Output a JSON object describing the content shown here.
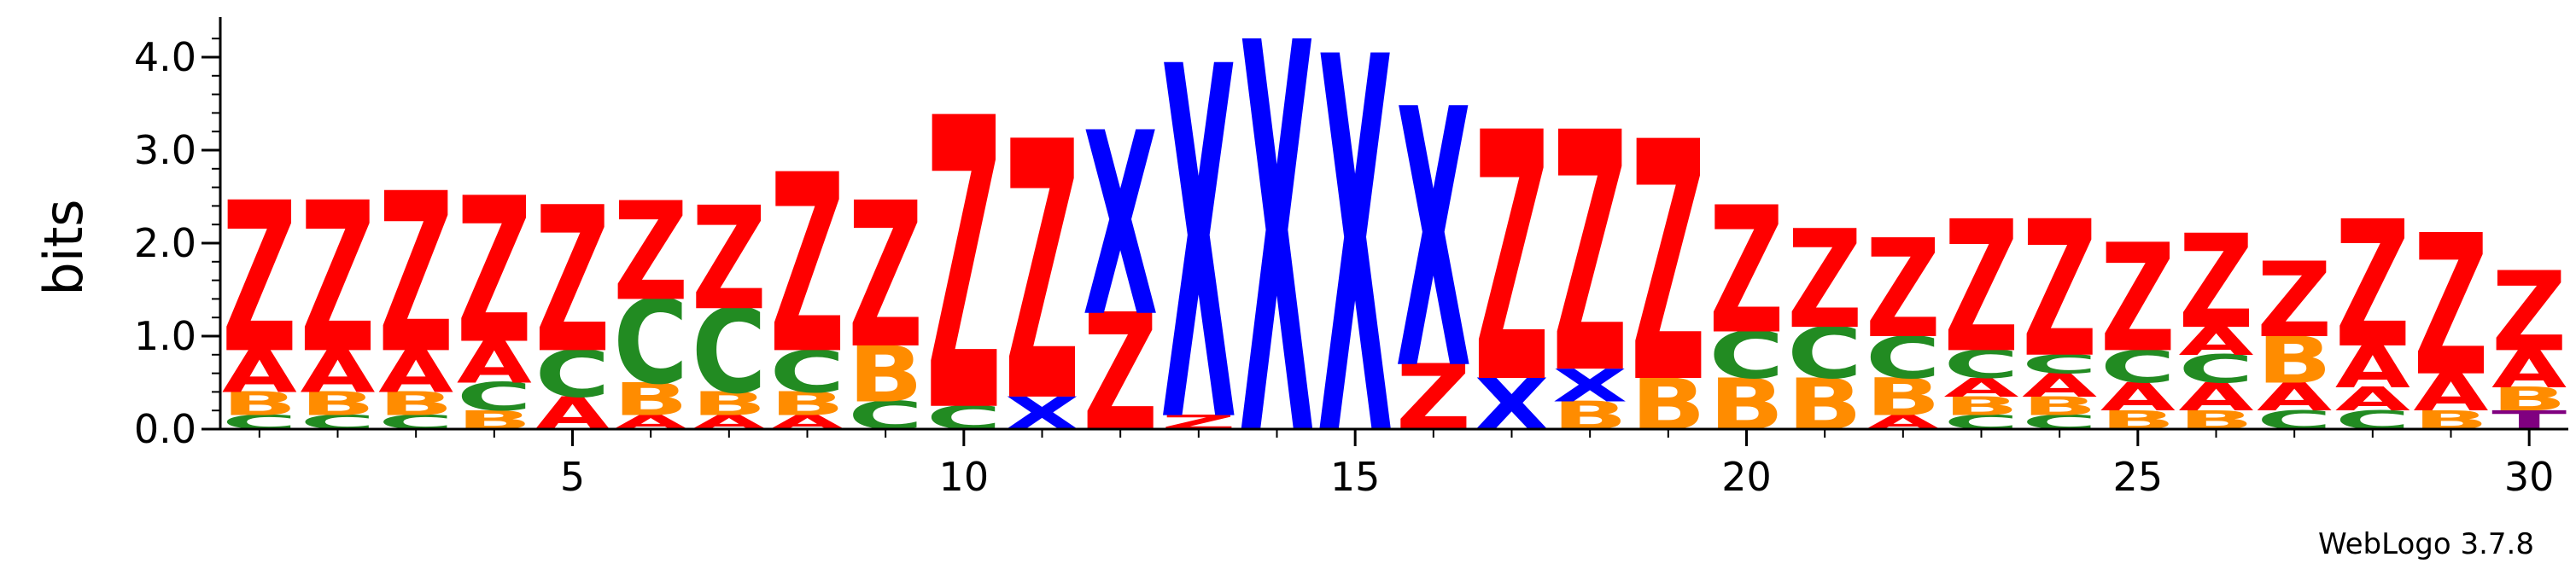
{
  "credit": "WebLogo 3.7.8",
  "colors": {
    "Z": "#ff0000",
    "X": "#0000ff",
    "A": "#ff0000",
    "B": "#ff8c00",
    "C": "#228b22",
    "T": "#800080"
  },
  "chart_data": {
    "type": "sequence-logo",
    "ylabel": "bits",
    "ylim": [
      0,
      4.2
    ],
    "yticks": [
      {
        "v": 0.0,
        "label": "0.0"
      },
      {
        "v": 1.0,
        "label": "1.0"
      },
      {
        "v": 2.0,
        "label": "2.0"
      },
      {
        "v": 3.0,
        "label": "3.0"
      },
      {
        "v": 4.0,
        "label": "4.0"
      }
    ],
    "xlim": [
      0.5,
      30.5
    ],
    "xticks": [
      {
        "v": 5,
        "label": "5"
      },
      {
        "v": 10,
        "label": "10"
      },
      {
        "v": 15,
        "label": "15"
      },
      {
        "v": 20,
        "label": "20"
      },
      {
        "v": 25,
        "label": "25"
      },
      {
        "v": 30,
        "label": "30"
      }
    ],
    "positions": [
      {
        "pos": 1,
        "stack": [
          [
            "C",
            0.15
          ],
          [
            "B",
            0.25
          ],
          [
            "A",
            0.45
          ],
          [
            "Z",
            1.6
          ]
        ]
      },
      {
        "pos": 2,
        "stack": [
          [
            "C",
            0.15
          ],
          [
            "B",
            0.25
          ],
          [
            "A",
            0.45
          ],
          [
            "Z",
            1.6
          ]
        ]
      },
      {
        "pos": 3,
        "stack": [
          [
            "C",
            0.15
          ],
          [
            "B",
            0.25
          ],
          [
            "A",
            0.45
          ],
          [
            "Z",
            1.7
          ]
        ]
      },
      {
        "pos": 4,
        "stack": [
          [
            "B",
            0.2
          ],
          [
            "C",
            0.3
          ],
          [
            "A",
            0.45
          ],
          [
            "Z",
            1.55
          ]
        ]
      },
      {
        "pos": 5,
        "stack": [
          [
            "A",
            0.35
          ],
          [
            "C",
            0.5
          ],
          [
            "Z",
            1.55
          ]
        ]
      },
      {
        "pos": 6,
        "stack": [
          [
            "A",
            0.15
          ],
          [
            "B",
            0.35
          ],
          [
            "C",
            0.9
          ],
          [
            "Z",
            1.05
          ]
        ]
      },
      {
        "pos": 7,
        "stack": [
          [
            "A",
            0.15
          ],
          [
            "B",
            0.25
          ],
          [
            "C",
            0.9
          ],
          [
            "Z",
            1.1
          ]
        ]
      },
      {
        "pos": 8,
        "stack": [
          [
            "A",
            0.15
          ],
          [
            "B",
            0.25
          ],
          [
            "C",
            0.45
          ],
          [
            "Z",
            1.9
          ]
        ]
      },
      {
        "pos": 9,
        "stack": [
          [
            "C",
            0.3
          ],
          [
            "B",
            0.6
          ],
          [
            "Z",
            1.55
          ]
        ]
      },
      {
        "pos": 10,
        "stack": [
          [
            "C",
            0.25
          ],
          [
            "Z",
            3.1
          ]
        ]
      },
      {
        "pos": 11,
        "stack": [
          [
            "X",
            0.35
          ],
          [
            "Z",
            2.75
          ]
        ]
      },
      {
        "pos": 12,
        "stack": [
          [
            "Z",
            1.25
          ],
          [
            "X",
            1.95
          ]
        ]
      },
      {
        "pos": 13,
        "stack": [
          [
            "Z",
            0.15
          ],
          [
            "X",
            3.75
          ]
        ]
      },
      {
        "pos": 14,
        "stack": [
          [
            "X",
            4.15
          ]
        ]
      },
      {
        "pos": 15,
        "stack": [
          [
            "X",
            4.0
          ]
        ]
      },
      {
        "pos": 16,
        "stack": [
          [
            "Z",
            0.7
          ],
          [
            "X",
            2.75
          ]
        ]
      },
      {
        "pos": 17,
        "stack": [
          [
            "X",
            0.55
          ],
          [
            "Z",
            2.65
          ]
        ]
      },
      {
        "pos": 18,
        "stack": [
          [
            "B",
            0.3
          ],
          [
            "X",
            0.35
          ],
          [
            "Z",
            2.55
          ]
        ]
      },
      {
        "pos": 19,
        "stack": [
          [
            "B",
            0.55
          ],
          [
            "Z",
            2.55
          ]
        ]
      },
      {
        "pos": 20,
        "stack": [
          [
            "B",
            0.55
          ],
          [
            "C",
            0.5
          ],
          [
            "Z",
            1.35
          ]
        ]
      },
      {
        "pos": 21,
        "stack": [
          [
            "B",
            0.55
          ],
          [
            "C",
            0.55
          ],
          [
            "Z",
            1.05
          ]
        ]
      },
      {
        "pos": 22,
        "stack": [
          [
            "A",
            0.15
          ],
          [
            "B",
            0.4
          ],
          [
            "C",
            0.45
          ],
          [
            "Z",
            1.05
          ]
        ]
      },
      {
        "pos": 23,
        "stack": [
          [
            "C",
            0.15
          ],
          [
            "B",
            0.2
          ],
          [
            "A",
            0.2
          ],
          [
            "C",
            0.3
          ],
          [
            "Z",
            1.4
          ]
        ]
      },
      {
        "pos": 24,
        "stack": [
          [
            "C",
            0.15
          ],
          [
            "B",
            0.2
          ],
          [
            "A",
            0.25
          ],
          [
            "C",
            0.2
          ],
          [
            "Z",
            1.45
          ]
        ]
      },
      {
        "pos": 25,
        "stack": [
          [
            "B",
            0.2
          ],
          [
            "A",
            0.3
          ],
          [
            "C",
            0.35
          ],
          [
            "Z",
            1.15
          ]
        ]
      },
      {
        "pos": 26,
        "stack": [
          [
            "B",
            0.2
          ],
          [
            "A",
            0.3
          ],
          [
            "C",
            0.3
          ],
          [
            "A",
            0.3
          ],
          [
            "Z",
            1.0
          ]
        ]
      },
      {
        "pos": 27,
        "stack": [
          [
            "C",
            0.2
          ],
          [
            "A",
            0.3
          ],
          [
            "B",
            0.5
          ],
          [
            "Z",
            0.8
          ]
        ]
      },
      {
        "pos": 28,
        "stack": [
          [
            "C",
            0.2
          ],
          [
            "A",
            0.25
          ],
          [
            "A",
            0.45
          ],
          [
            "Z",
            1.35
          ]
        ]
      },
      {
        "pos": 29,
        "stack": [
          [
            "B",
            0.2
          ],
          [
            "A",
            0.4
          ],
          [
            "Z",
            1.5
          ]
        ]
      },
      {
        "pos": 30,
        "stack": [
          [
            "T",
            0.2
          ],
          [
            "B",
            0.25
          ],
          [
            "A",
            0.4
          ],
          [
            "Z",
            0.85
          ]
        ]
      }
    ]
  }
}
